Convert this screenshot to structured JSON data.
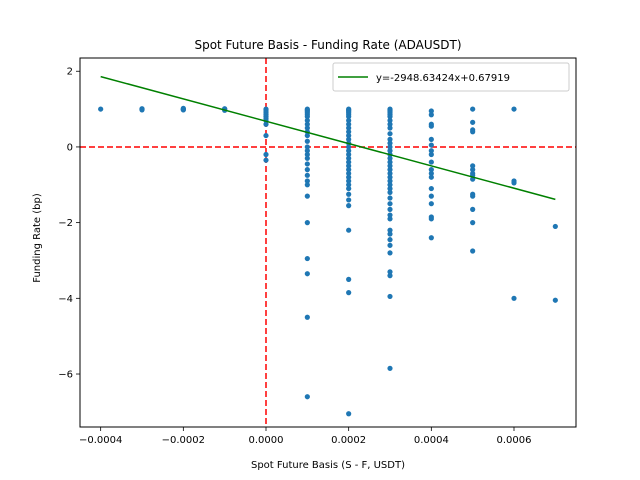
{
  "chart_data": {
    "type": "scatter",
    "title": "Spot Future Basis - Funding Rate (ADAUSDT)",
    "xlabel": "Spot Future Basis (S - F, USDT)",
    "ylabel": "Funding Rate (bp)",
    "xlim": [
      -0.00045,
      0.00075
    ],
    "ylim": [
      -7.4,
      2.35
    ],
    "x_ticks": [
      -0.0004,
      -0.0002,
      0.0,
      0.0002,
      0.0004,
      0.0006
    ],
    "x_tick_labels": [
      "−0.0004",
      "−0.0002",
      "0.0000",
      "0.0002",
      "0.0004",
      "0.0006"
    ],
    "y_ticks": [
      -6,
      -4,
      -2,
      0,
      2
    ],
    "y_tick_labels": [
      "−6",
      "−4",
      "−2",
      "0",
      "2"
    ],
    "grid": false,
    "legend_position": "top-right",
    "colors": {
      "points": "#1f77b4",
      "fit_line": "#008000",
      "ref_lines": "#ff0000"
    },
    "reference_lines": {
      "vertical_x": 0.0,
      "horizontal_y": 0.0,
      "style": "dashed"
    },
    "fit_line": {
      "label": "y=-2948.63424x+0.67919",
      "slope": -2948.63424,
      "intercept": 0.67919,
      "x_range": [
        -0.0004,
        0.0007
      ]
    },
    "series": [
      {
        "points": [
          [
            -0.0004,
            1.0
          ],
          [
            -0.0003,
            1.0
          ],
          [
            -0.0003,
            0.98
          ],
          [
            -0.0003,
            1.01
          ],
          [
            -0.0002,
            1.0
          ],
          [
            -0.0002,
            0.98
          ],
          [
            -0.0002,
            1.02
          ],
          [
            -0.0002,
            0.99
          ],
          [
            -0.0001,
            1.0
          ],
          [
            -0.0001,
            0.97
          ],
          [
            -0.0001,
            1.01
          ],
          [
            0.0,
            1.0
          ],
          [
            0.0,
            0.95
          ],
          [
            0.0,
            0.9
          ],
          [
            0.0,
            0.85
          ],
          [
            0.0,
            0.8
          ],
          [
            0.0,
            0.75
          ],
          [
            0.0,
            0.7
          ],
          [
            0.0,
            0.6
          ],
          [
            0.0,
            0.3
          ],
          [
            0.0,
            -0.2
          ],
          [
            0.0,
            -0.35
          ],
          [
            0.0001,
            1.0
          ],
          [
            0.0001,
            0.97
          ],
          [
            0.0001,
            0.94
          ],
          [
            0.0001,
            0.9
          ],
          [
            0.0001,
            0.85
          ],
          [
            0.0001,
            0.8
          ],
          [
            0.0001,
            0.7
          ],
          [
            0.0001,
            0.6
          ],
          [
            0.0001,
            0.5
          ],
          [
            0.0001,
            0.4
          ],
          [
            0.0001,
            0.3
          ],
          [
            0.0001,
            0.15
          ],
          [
            0.0001,
            0.0
          ],
          [
            0.0001,
            -0.1
          ],
          [
            0.0001,
            -0.2
          ],
          [
            0.0001,
            -0.3
          ],
          [
            0.0001,
            -0.45
          ],
          [
            0.0001,
            -0.6
          ],
          [
            0.0001,
            -0.75
          ],
          [
            0.0001,
            -0.9
          ],
          [
            0.0001,
            -1.0
          ],
          [
            0.0001,
            -1.3
          ],
          [
            0.0001,
            -2.0
          ],
          [
            0.0001,
            -2.95
          ],
          [
            0.0001,
            -3.35
          ],
          [
            0.0001,
            -4.5
          ],
          [
            0.0001,
            -6.6
          ],
          [
            0.0002,
            1.0
          ],
          [
            0.0002,
            0.97
          ],
          [
            0.0002,
            0.94
          ],
          [
            0.0002,
            0.9
          ],
          [
            0.0002,
            0.85
          ],
          [
            0.0002,
            0.8
          ],
          [
            0.0002,
            0.7
          ],
          [
            0.0002,
            0.6
          ],
          [
            0.0002,
            0.5
          ],
          [
            0.0002,
            0.4
          ],
          [
            0.0002,
            0.3
          ],
          [
            0.0002,
            0.2
          ],
          [
            0.0002,
            0.1
          ],
          [
            0.0002,
            0.0
          ],
          [
            0.0002,
            -0.1
          ],
          [
            0.0002,
            -0.2
          ],
          [
            0.0002,
            -0.3
          ],
          [
            0.0002,
            -0.4
          ],
          [
            0.0002,
            -0.5
          ],
          [
            0.0002,
            -0.6
          ],
          [
            0.0002,
            -0.7
          ],
          [
            0.0002,
            -0.8
          ],
          [
            0.0002,
            -0.9
          ],
          [
            0.0002,
            -1.0
          ],
          [
            0.0002,
            -1.1
          ],
          [
            0.0002,
            -1.25
          ],
          [
            0.0002,
            -1.4
          ],
          [
            0.0002,
            -1.55
          ],
          [
            0.0002,
            -2.2
          ],
          [
            0.0002,
            -3.5
          ],
          [
            0.0002,
            -3.85
          ],
          [
            0.0002,
            -7.05
          ],
          [
            0.0003,
            1.0
          ],
          [
            0.0003,
            0.97
          ],
          [
            0.0003,
            0.94
          ],
          [
            0.0003,
            0.9
          ],
          [
            0.0003,
            0.85
          ],
          [
            0.0003,
            0.8
          ],
          [
            0.0003,
            0.7
          ],
          [
            0.0003,
            0.6
          ],
          [
            0.0003,
            0.5
          ],
          [
            0.0003,
            0.35
          ],
          [
            0.0003,
            0.2
          ],
          [
            0.0003,
            0.1
          ],
          [
            0.0003,
            0.0
          ],
          [
            0.0003,
            -0.1
          ],
          [
            0.0003,
            -0.2
          ],
          [
            0.0003,
            -0.3
          ],
          [
            0.0003,
            -0.4
          ],
          [
            0.0003,
            -0.5
          ],
          [
            0.0003,
            -0.6
          ],
          [
            0.0003,
            -0.7
          ],
          [
            0.0003,
            -0.8
          ],
          [
            0.0003,
            -0.9
          ],
          [
            0.0003,
            -1.0
          ],
          [
            0.0003,
            -1.1
          ],
          [
            0.0003,
            -1.2
          ],
          [
            0.0003,
            -1.35
          ],
          [
            0.0003,
            -1.5
          ],
          [
            0.0003,
            -1.65
          ],
          [
            0.0003,
            -1.8
          ],
          [
            0.0003,
            -1.9
          ],
          [
            0.0003,
            -2.2
          ],
          [
            0.0003,
            -2.3
          ],
          [
            0.0003,
            -2.45
          ],
          [
            0.0003,
            -2.6
          ],
          [
            0.0003,
            -2.8
          ],
          [
            0.0003,
            -3.3
          ],
          [
            0.0003,
            -3.4
          ],
          [
            0.0003,
            -3.95
          ],
          [
            0.0003,
            -5.85
          ],
          [
            0.0004,
            0.95
          ],
          [
            0.0004,
            0.85
          ],
          [
            0.0004,
            0.6
          ],
          [
            0.0004,
            0.55
          ],
          [
            0.0004,
            0.2
          ],
          [
            0.0004,
            0.05
          ],
          [
            0.0004,
            -0.1
          ],
          [
            0.0004,
            -0.2
          ],
          [
            0.0004,
            -0.4
          ],
          [
            0.0004,
            -0.6
          ],
          [
            0.0004,
            -0.7
          ],
          [
            0.0004,
            -0.8
          ],
          [
            0.0004,
            -1.1
          ],
          [
            0.0004,
            -1.3
          ],
          [
            0.0004,
            -1.5
          ],
          [
            0.0004,
            -1.85
          ],
          [
            0.0004,
            -1.9
          ],
          [
            0.0004,
            -2.4
          ],
          [
            0.0005,
            1.0
          ],
          [
            0.0005,
            0.65
          ],
          [
            0.0005,
            0.45
          ],
          [
            0.0005,
            0.4
          ],
          [
            0.0005,
            -0.5
          ],
          [
            0.0005,
            -0.6
          ],
          [
            0.0005,
            -0.7
          ],
          [
            0.0005,
            -0.75
          ],
          [
            0.0005,
            -0.85
          ],
          [
            0.0005,
            -1.25
          ],
          [
            0.0005,
            -1.3
          ],
          [
            0.0005,
            -1.65
          ],
          [
            0.0005,
            -2.0
          ],
          [
            0.0005,
            -2.75
          ],
          [
            0.0006,
            1.0
          ],
          [
            0.0006,
            -0.9
          ],
          [
            0.0006,
            -0.95
          ],
          [
            0.0006,
            -4.0
          ],
          [
            0.0007,
            -2.1
          ],
          [
            0.0007,
            -4.05
          ]
        ]
      }
    ]
  }
}
